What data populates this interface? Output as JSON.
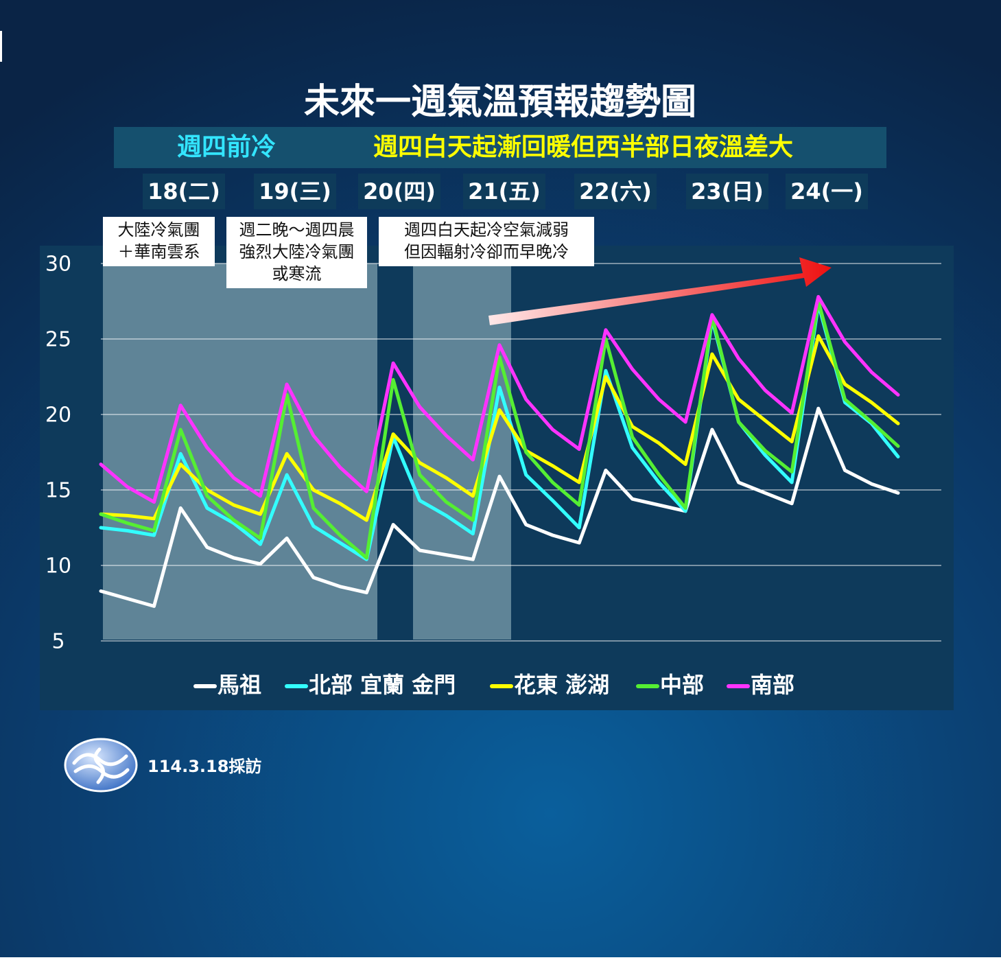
{
  "chart_data": {
    "type": "line",
    "title": "未來一週氣溫預報趨勢圖",
    "subtitles": [
      "週四前冷",
      "週四白天起漸回暖但西半部日夜溫差大"
    ],
    "day_labels": [
      "18(二)",
      "19(三)",
      "20(四)",
      "21(五)",
      "22(六)",
      "23(日)",
      "24(一)"
    ],
    "annotations": [
      [
        "大陸冷氣團",
        "＋華南雲系"
      ],
      [
        "週二晚～週四晨",
        "強烈大陸冷氣團",
        "或寒流"
      ],
      [
        "週四白天起冷空氣減弱",
        "但因輻射冷卻而早晚冷"
      ]
    ],
    "source": "114.3.18採訪",
    "categories": [
      null,
      null,
      null,
      null,
      null,
      null,
      null,
      null,
      null,
      null,
      null,
      null,
      null,
      null,
      null,
      null,
      null,
      null,
      null,
      null,
      null,
      null,
      null,
      null,
      null,
      null,
      null,
      null,
      null,
      null,
      null
    ],
    "ylim": [
      5,
      30
    ],
    "yticks": [
      5,
      10,
      15,
      20,
      25,
      30
    ],
    "grid": true,
    "series": [
      {
        "name": "馬祖",
        "color": "#ffffff",
        "values": [
          8.3,
          7.8,
          7.3,
          13.8,
          11.2,
          10.5,
          10.1,
          11.8,
          9.2,
          8.6,
          8.2,
          12.7,
          11.0,
          10.7,
          10.4,
          15.9,
          12.7,
          12.0,
          11.5,
          16.3,
          14.4,
          14.0,
          13.6,
          19.0,
          15.5,
          14.8,
          14.1,
          20.4,
          16.3,
          15.4,
          14.8
        ]
      },
      {
        "name": "北部 宜蘭 金門",
        "color": "#33ffff",
        "values": [
          12.5,
          12.3,
          12.0,
          17.4,
          13.8,
          12.8,
          11.4,
          16.0,
          12.6,
          11.5,
          10.4,
          18.5,
          14.3,
          13.3,
          12.1,
          21.8,
          16.0,
          14.3,
          12.5,
          22.9,
          17.8,
          15.5,
          13.6,
          26.3,
          19.5,
          17.3,
          15.5,
          27.3,
          20.8,
          19.4,
          17.2
        ]
      },
      {
        "name": "花東 澎湖",
        "color": "#ffff00",
        "values": [
          13.4,
          13.3,
          13.1,
          16.7,
          15.0,
          14.0,
          13.4,
          17.4,
          15.0,
          14.1,
          13.0,
          18.7,
          16.8,
          15.8,
          14.6,
          20.3,
          17.6,
          16.6,
          15.5,
          22.5,
          19.2,
          18.1,
          16.7,
          24.0,
          21.0,
          19.6,
          18.2,
          25.2,
          22.0,
          20.8,
          19.4
        ]
      },
      {
        "name": "中部",
        "color": "#55ee33",
        "values": [
          13.4,
          12.8,
          12.3,
          19.0,
          14.6,
          13.0,
          11.8,
          21.3,
          13.8,
          12.0,
          10.5,
          22.3,
          16.0,
          14.2,
          13.0,
          23.8,
          17.5,
          15.5,
          14.0,
          25.0,
          18.5,
          16.0,
          13.8,
          26.5,
          19.5,
          17.6,
          16.2,
          27.5,
          21.0,
          19.5,
          17.9
        ]
      },
      {
        "name": "南部",
        "color": "#ff33ff",
        "values": [
          16.7,
          15.2,
          14.2,
          20.6,
          17.8,
          15.8,
          14.6,
          22.0,
          18.6,
          16.5,
          14.9,
          23.4,
          20.5,
          18.6,
          17.0,
          24.6,
          21.0,
          19.0,
          17.7,
          25.6,
          23.0,
          21.0,
          19.5,
          26.6,
          23.7,
          21.6,
          20.1,
          27.8,
          24.8,
          22.8,
          21.3
        ]
      }
    ]
  }
}
